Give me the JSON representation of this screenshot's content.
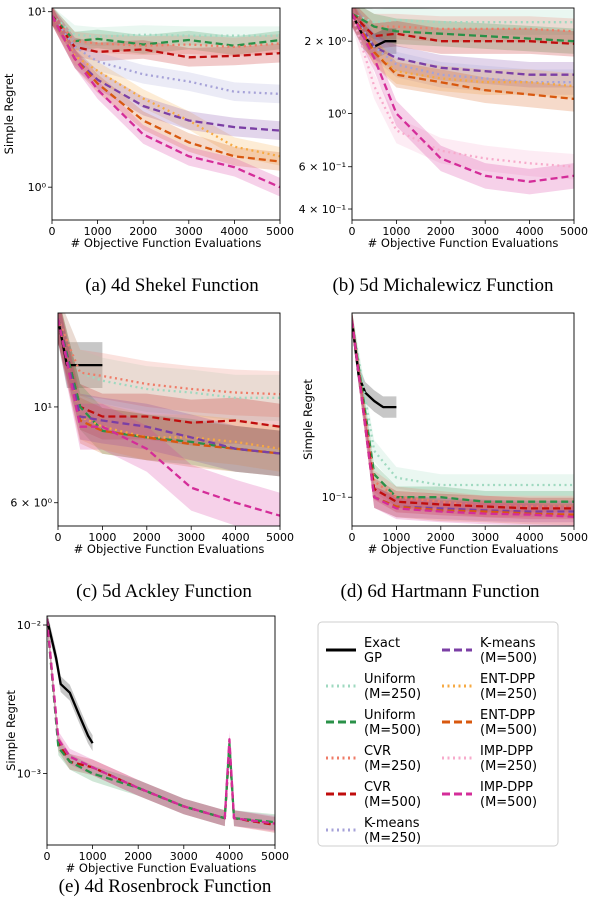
{
  "chart_data": [
    {
      "id": "a",
      "type": "line",
      "title": "",
      "caption": "(a) 4d Shekel Function",
      "xlabel": "# Objective Function Evaluations",
      "ylabel": "Simple Regret",
      "xlim": [
        0,
        5000
      ],
      "ylim": [
        0.65,
        10.5
      ],
      "yscale": "log",
      "xticks": [
        0,
        1000,
        2000,
        3000,
        4000,
        5000
      ],
      "yticks": [
        {
          "value": 1,
          "label": "10⁰"
        },
        {
          "value": 10,
          "label": "10¹"
        }
      ],
      "series": [
        {
          "name": "Uniform (M=250)",
          "x": [
            0,
            500,
            1000,
            2000,
            3000,
            4000,
            5000
          ],
          "y": [
            9.5,
            7.4,
            7.2,
            7.4,
            7.3,
            7.3,
            7.3
          ]
        },
        {
          "name": "Uniform (M=500)",
          "x": [
            0,
            500,
            1000,
            2000,
            3000,
            4000,
            5000
          ],
          "y": [
            9.5,
            6.8,
            7.0,
            6.5,
            6.9,
            6.4,
            6.9
          ]
        },
        {
          "name": "CVR (M=250)",
          "x": [
            0,
            500,
            1000,
            2000,
            3000,
            4000,
            5000
          ],
          "y": [
            9.5,
            6.8,
            6.6,
            6.4,
            6.5,
            6.3,
            6.6
          ]
        },
        {
          "name": "CVR (M=500)",
          "x": [
            0,
            500,
            1000,
            2000,
            3000,
            4000,
            5000
          ],
          "y": [
            9.5,
            6.3,
            5.9,
            6.1,
            5.5,
            5.6,
            5.8
          ]
        },
        {
          "name": "K-means (M=250)",
          "x": [
            0,
            500,
            1000,
            2000,
            3000,
            4000,
            5000
          ],
          "y": [
            9.5,
            6.3,
            5.2,
            4.4,
            4.0,
            3.5,
            3.4
          ]
        },
        {
          "name": "ENT-DPP (M=250)",
          "x": [
            0,
            500,
            1000,
            2000,
            3000,
            4000,
            5000
          ],
          "y": [
            9.5,
            5.6,
            4.6,
            3.2,
            2.4,
            1.7,
            1.5
          ]
        },
        {
          "name": "K-means (M=500)",
          "x": [
            0,
            500,
            1000,
            2000,
            3000,
            4000,
            5000
          ],
          "y": [
            9.5,
            5.4,
            4.1,
            2.9,
            2.4,
            2.2,
            2.1
          ]
        },
        {
          "name": "ENT-DPP (M=500)",
          "x": [
            0,
            500,
            1000,
            2000,
            3000,
            4000,
            5000
          ],
          "y": [
            9.5,
            5.4,
            3.9,
            2.4,
            1.8,
            1.5,
            1.4
          ]
        },
        {
          "name": "IMP-DPP (M=500)",
          "x": [
            0,
            500,
            1000,
            2000,
            3000,
            4000,
            5000
          ],
          "y": [
            9.5,
            5.4,
            3.6,
            2.0,
            1.5,
            1.3,
            1.0
          ]
        }
      ]
    },
    {
      "id": "b",
      "type": "line",
      "title": "",
      "caption": "(b) 5d Michalewicz Function",
      "xlabel": "# Objective Function Evaluations",
      "ylabel": "",
      "xlim": [
        0,
        5000
      ],
      "ylim": [
        0.36,
        2.75
      ],
      "yscale": "log",
      "xticks": [
        0,
        1000,
        2000,
        3000,
        4000,
        5000
      ],
      "yticks": [
        {
          "value": 0.4,
          "label": "4 × 10⁻¹"
        },
        {
          "value": 0.6,
          "label": "6 × 10⁻¹"
        },
        {
          "value": 1,
          "label": "10⁰"
        },
        {
          "value": 2,
          "label": "2 × 10⁰"
        }
      ],
      "series": [
        {
          "name": "Uniform (M=250)",
          "x": [
            0,
            500,
            1000,
            2000,
            3000,
            4000,
            5000
          ],
          "y": [
            2.6,
            2.4,
            2.45,
            2.4,
            2.4,
            2.4,
            2.4
          ]
        },
        {
          "name": "CVR (M=250)",
          "x": [
            0,
            500,
            1000,
            2000,
            3000,
            4000,
            5000
          ],
          "y": [
            2.6,
            2.3,
            2.3,
            2.25,
            2.25,
            2.25,
            2.2
          ]
        },
        {
          "name": "Uniform (M=500)",
          "x": [
            0,
            500,
            1000,
            2000,
            3000,
            4000,
            5000
          ],
          "y": [
            2.6,
            2.3,
            2.2,
            2.15,
            2.1,
            2.05,
            2.0
          ]
        },
        {
          "name": "CVR (M=500)",
          "x": [
            0,
            500,
            1000,
            2000,
            3000,
            4000,
            5000
          ],
          "y": [
            2.6,
            2.1,
            2.15,
            2.0,
            2.0,
            2.0,
            1.95
          ]
        },
        {
          "name": "Exact GP",
          "x": [
            0,
            250,
            500,
            750,
            1000
          ],
          "y": [
            2.6,
            2.1,
            1.9,
            2.0,
            2.0
          ]
        },
        {
          "name": "K-means (M=500)",
          "x": [
            0,
            500,
            1000,
            2000,
            3000,
            4000,
            5000
          ],
          "y": [
            2.6,
            1.9,
            1.7,
            1.55,
            1.5,
            1.45,
            1.45
          ]
        },
        {
          "name": "K-means (M=250)",
          "x": [
            0,
            500,
            1000,
            2000,
            3000,
            4000,
            5000
          ],
          "y": [
            2.6,
            1.9,
            1.6,
            1.45,
            1.4,
            1.35,
            1.35
          ]
        },
        {
          "name": "ENT-DPP (M=250)",
          "x": [
            0,
            500,
            1000,
            2000,
            3000,
            4000,
            5000
          ],
          "y": [
            2.6,
            1.8,
            1.5,
            1.4,
            1.35,
            1.35,
            1.3
          ]
        },
        {
          "name": "ENT-DPP (M=500)",
          "x": [
            0,
            500,
            1000,
            2000,
            3000,
            4000,
            5000
          ],
          "y": [
            2.6,
            1.8,
            1.45,
            1.35,
            1.25,
            1.2,
            1.15
          ]
        },
        {
          "name": "IMP-DPP (M=250)",
          "x": [
            0,
            500,
            1000,
            2000,
            3000,
            4000,
            5000
          ],
          "y": [
            2.6,
            1.3,
            0.85,
            0.7,
            0.65,
            0.62,
            0.6
          ]
        },
        {
          "name": "IMP-DPP (M=500)",
          "x": [
            0,
            500,
            1000,
            2000,
            3000,
            4000,
            5000
          ],
          "y": [
            2.6,
            1.7,
            1.0,
            0.65,
            0.55,
            0.52,
            0.55
          ]
        }
      ]
    },
    {
      "id": "c",
      "type": "line",
      "title": "",
      "caption": "(c) 5d Ackley Function",
      "xlabel": "# Objective Function Evaluations",
      "ylabel": "",
      "xlim": [
        0,
        5000
      ],
      "ylim": [
        5.3,
        16.5
      ],
      "yscale": "log",
      "xticks": [
        0,
        1000,
        2000,
        3000,
        4000,
        5000
      ],
      "yticks": [
        {
          "value": 6,
          "label": "6 × 10⁰"
        },
        {
          "value": 10,
          "label": "10¹"
        }
      ],
      "series": [
        {
          "name": "Exact GP",
          "x": [
            0,
            200,
            400,
            1000
          ],
          "y": [
            16,
            12.5,
            12.5,
            12.5
          ]
        },
        {
          "name": "Uniform (M=250)",
          "x": [
            0,
            500,
            1000,
            2000,
            3000,
            4000,
            5000
          ],
          "y": [
            16,
            12,
            11.5,
            11,
            10.8,
            10.5,
            10.5
          ]
        },
        {
          "name": "CVR (M=250)",
          "x": [
            0,
            500,
            1000,
            2000,
            3000,
            4000,
            5000
          ],
          "y": [
            16,
            12,
            11.8,
            11.3,
            11,
            10.8,
            10.7
          ]
        },
        {
          "name": "CVR (M=500)",
          "x": [
            0,
            500,
            1000,
            2000,
            3000,
            4000,
            5000
          ],
          "y": [
            16,
            10,
            9.5,
            9.5,
            9.2,
            9.3,
            9.0
          ]
        },
        {
          "name": "Uniform (M=500)",
          "x": [
            0,
            500,
            1000,
            2000,
            3000,
            4000,
            5000
          ],
          "y": [
            16,
            10,
            8.8,
            8.5,
            8.3,
            8.0,
            7.8
          ]
        },
        {
          "name": "ENT-DPP (M=250)",
          "x": [
            0,
            500,
            1000,
            2000,
            3000,
            4000,
            5000
          ],
          "y": [
            16,
            9.5,
            9.0,
            8.5,
            8.5,
            8.3,
            8.0
          ]
        },
        {
          "name": "ENT-DPP (M=500)",
          "x": [
            0,
            500,
            1000,
            2000,
            3000,
            4000,
            5000
          ],
          "y": [
            16,
            9.3,
            8.8,
            8.5,
            8.2,
            8.0,
            7.8
          ]
        },
        {
          "name": "K-means (M=500)",
          "x": [
            0,
            500,
            1000,
            2000,
            3000,
            4000,
            5000
          ],
          "y": [
            16,
            9.5,
            9.3,
            9.0,
            8.5,
            8.0,
            7.8
          ]
        },
        {
          "name": "IMP-DPP (M=500)",
          "x": [
            0,
            500,
            1000,
            2000,
            3000,
            4000,
            5000
          ],
          "y": [
            16,
            9.0,
            9.0,
            8.0,
            6.5,
            6.0,
            5.6
          ]
        }
      ]
    },
    {
      "id": "d",
      "type": "line",
      "title": "",
      "caption": "(d) 6d Hartmann Function",
      "xlabel": "# Objective Function Evaluations",
      "ylabel": "Simple Regret",
      "xlim": [
        0,
        5000
      ],
      "ylim": [
        0.072,
        0.82
      ],
      "yscale": "log",
      "xticks": [
        0,
        1000,
        2000,
        3000,
        4000,
        5000
      ],
      "yticks": [
        {
          "value": 0.1,
          "label": "10⁻¹"
        }
      ],
      "series": [
        {
          "name": "Exact GP",
          "x": [
            0,
            150,
            300,
            500,
            700,
            1000
          ],
          "y": [
            0.75,
            0.4,
            0.33,
            0.3,
            0.28,
            0.28
          ]
        },
        {
          "name": "Uniform (M=250)",
          "x": [
            0,
            500,
            1000,
            2000,
            3000,
            4000,
            5000
          ],
          "y": [
            0.75,
            0.17,
            0.125,
            0.115,
            0.115,
            0.115,
            0.115
          ]
        },
        {
          "name": "Uniform (M=500)",
          "x": [
            0,
            500,
            1000,
            2000,
            3000,
            4000,
            5000
          ],
          "y": [
            0.75,
            0.13,
            0.1,
            0.1,
            0.095,
            0.095,
            0.095
          ]
        },
        {
          "name": "CVR (M=250)",
          "x": [
            0,
            500,
            1000,
            2000,
            3000,
            4000,
            5000
          ],
          "y": [
            0.75,
            0.12,
            0.1,
            0.095,
            0.09,
            0.09,
            0.09
          ]
        },
        {
          "name": "CVR (M=500)",
          "x": [
            0,
            500,
            1000,
            2000,
            3000,
            4000,
            5000
          ],
          "y": [
            0.75,
            0.11,
            0.095,
            0.092,
            0.09,
            0.088,
            0.088
          ]
        },
        {
          "name": "K-means (M=500)",
          "x": [
            0,
            500,
            1000,
            2000,
            3000,
            4000,
            5000
          ],
          "y": [
            0.75,
            0.1,
            0.09,
            0.088,
            0.086,
            0.085,
            0.085
          ]
        },
        {
          "name": "ENT-DPP (M=500)",
          "x": [
            0,
            500,
            1000,
            2000,
            3000,
            4000,
            5000
          ],
          "y": [
            0.75,
            0.1,
            0.09,
            0.086,
            0.085,
            0.083,
            0.082
          ]
        },
        {
          "name": "IMP-DPP (M=500)",
          "x": [
            0,
            500,
            1000,
            2000,
            3000,
            4000,
            5000
          ],
          "y": [
            0.75,
            0.1,
            0.088,
            0.085,
            0.083,
            0.082,
            0.08
          ]
        }
      ]
    },
    {
      "id": "e",
      "type": "line",
      "title": "",
      "caption": "(e) 4d Rosenbrock Function",
      "xlabel": "# Objective Function Evaluations",
      "ylabel": "Simple Regret",
      "xlim": [
        0,
        5000
      ],
      "ylim": [
        0.00033,
        0.0115
      ],
      "yscale": "log",
      "xticks": [
        0,
        1000,
        2000,
        3000,
        4000,
        5000
      ],
      "yticks": [
        {
          "value": 0.001,
          "label": "10⁻³"
        },
        {
          "value": 0.01,
          "label": "10⁻²"
        }
      ],
      "series": [
        {
          "name": "Exact GP",
          "x": [
            0,
            200,
            300,
            500,
            700,
            900,
            1000
          ],
          "y": [
            0.011,
            0.006,
            0.004,
            0.0035,
            0.0025,
            0.0018,
            0.0016
          ]
        },
        {
          "name": "CVR (M=500)",
          "x": [
            0,
            250,
            500,
            1000,
            2000,
            3000,
            3900,
            4000,
            4100,
            5000
          ],
          "y": [
            0.011,
            0.0016,
            0.0012,
            0.0011,
            0.0008,
            0.0006,
            0.0005,
            0.0015,
            0.0005,
            0.00045
          ]
        },
        {
          "name": "Uniform (M=500)",
          "x": [
            0,
            250,
            500,
            1000,
            2000,
            3000,
            3900,
            4000,
            4100,
            5000
          ],
          "y": [
            0.011,
            0.0015,
            0.0012,
            0.001,
            0.0008,
            0.0006,
            0.0005,
            0.0016,
            0.0005,
            0.00047
          ]
        },
        {
          "name": "IMP-DPP (M=500)",
          "x": [
            0,
            250,
            500,
            1000,
            2000,
            3000,
            3900,
            4000,
            4100,
            5000
          ],
          "y": [
            0.011,
            0.0017,
            0.0013,
            0.0011,
            0.0008,
            0.0006,
            0.0005,
            0.0017,
            0.0005,
            0.00046
          ]
        }
      ]
    }
  ],
  "legend": {
    "entries": [
      {
        "line1": "Exact",
        "line2": "GP",
        "color": "#000000",
        "style": "solid"
      },
      {
        "line1": "Uniform",
        "line2": "(M=250)",
        "color": "#9fd9c0",
        "style": "dotted"
      },
      {
        "line1": "Uniform",
        "line2": "(M=500)",
        "color": "#2a9148",
        "style": "dashed"
      },
      {
        "line1": "CVR",
        "line2": "(M=250)",
        "color": "#ef7b67",
        "style": "dotted"
      },
      {
        "line1": "CVR",
        "line2": "(M=500)",
        "color": "#c00d0d",
        "style": "dashed"
      },
      {
        "line1": "K-means",
        "line2": "(M=250)",
        "color": "#a6a2d8",
        "style": "dotted"
      },
      {
        "line1": "K-means",
        "line2": "(M=500)",
        "color": "#7b3fa5",
        "style": "dashed"
      },
      {
        "line1": "ENT-DPP",
        "line2": "(M=250)",
        "color": "#f6a942",
        "style": "dotted"
      },
      {
        "line1": "ENT-DPP",
        "line2": "(M=500)",
        "color": "#d8580f",
        "style": "dashed"
      },
      {
        "line1": "IMP-DPP",
        "line2": "(M=250)",
        "color": "#f7aacb",
        "style": "dotted"
      },
      {
        "line1": "IMP-DPP",
        "line2": "(M=500)",
        "color": "#d42d99",
        "style": "dashed"
      }
    ]
  }
}
